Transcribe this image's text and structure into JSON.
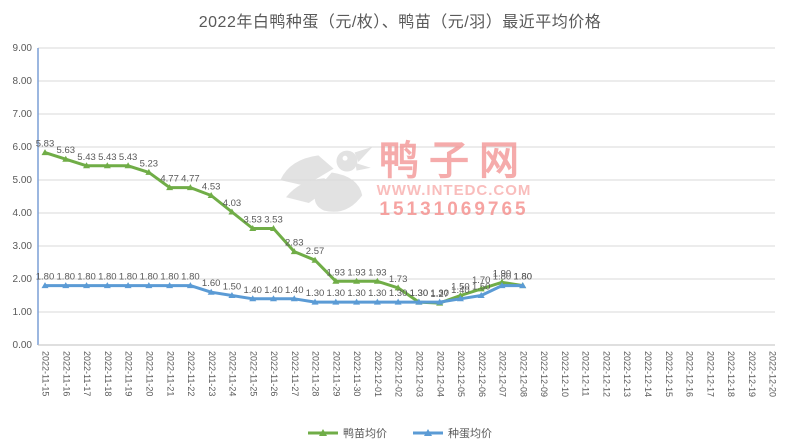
{
  "title": "2022年白鸭种蛋（元/枚）、鸭苗（元/羽）最近平均价格",
  "watermark": {
    "site_name": "鸭子网",
    "url": "WWW.INTEDC.COM",
    "phone": "15131069765"
  },
  "y_axis": {
    "tick_labels": [
      "0.00",
      "1.00",
      "2.00",
      "3.00",
      "4.00",
      "5.00",
      "6.00",
      "7.00",
      "8.00",
      "9.00"
    ]
  },
  "chart_data": {
    "type": "line",
    "title": "2022年白鸭种蛋（元/枚）、鸭苗（元/羽）最近平均价格",
    "xlabel": "",
    "ylabel": "",
    "ylim": [
      0,
      9
    ],
    "ytick_step": 1,
    "grid": true,
    "legend_position": "bottom",
    "marker": "triangle",
    "x": [
      "2022-11-15",
      "2022-11-16",
      "2022-11-17",
      "2022-11-18",
      "2022-11-19",
      "2022-11-20",
      "2022-11-21",
      "2022-11-22",
      "2022-11-23",
      "2022-11-24",
      "2022-11-25",
      "2022-11-26",
      "2022-11-27",
      "2022-11-28",
      "2022-11-29",
      "2022-11-30",
      "2022-12-01",
      "2022-12-02",
      "2022-12-03",
      "2022-12-04",
      "2022-12-05",
      "2022-12-06",
      "2022-12-07",
      "2022-12-08",
      "2022-12-09",
      "2022-12-10",
      "2022-12-11",
      "2022-12-12",
      "2022-12-13",
      "2022-12-14",
      "2022-12-15",
      "2022-12-16",
      "2022-12-17",
      "2022-12-18",
      "2022-12-19",
      "2022-12-20"
    ],
    "series": [
      {
        "name": "鸭苗均价",
        "color": "#70AD47",
        "values": [
          5.83,
          5.63,
          5.43,
          5.43,
          5.43,
          5.23,
          4.77,
          4.77,
          4.53,
          4.03,
          3.53,
          3.53,
          2.83,
          2.57,
          1.93,
          1.93,
          1.93,
          1.73,
          1.3,
          1.27,
          1.5,
          1.7,
          1.9,
          1.8,
          null,
          null,
          null,
          null,
          null,
          null,
          null,
          null,
          null,
          null,
          null,
          null
        ]
      },
      {
        "name": "种蛋均价",
        "color": "#5B9BD5",
        "values": [
          1.8,
          1.8,
          1.8,
          1.8,
          1.8,
          1.8,
          1.8,
          1.8,
          1.6,
          1.5,
          1.4,
          1.4,
          1.4,
          1.3,
          1.3,
          1.3,
          1.3,
          1.3,
          1.3,
          1.3,
          1.4,
          1.5,
          1.8,
          1.8,
          null,
          null,
          null,
          null,
          null,
          null,
          null,
          null,
          null,
          null,
          null,
          null
        ]
      }
    ],
    "colors": {
      "gridline": "#D9D9D9",
      "y_axis_line": "#7C9FD6",
      "x_axis_line": "#BFBFBF",
      "tick_text": "#595959",
      "data_label_text": "#595959"
    }
  }
}
